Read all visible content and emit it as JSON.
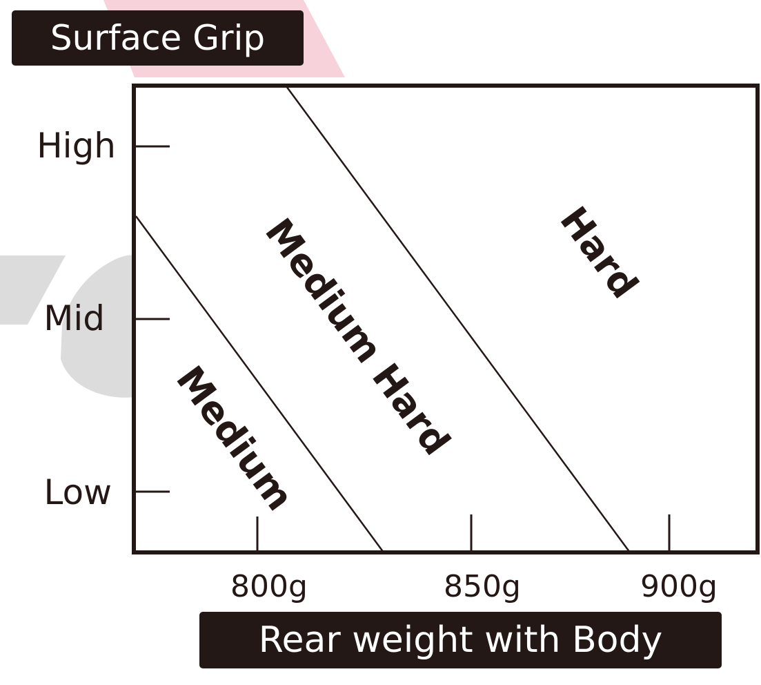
{
  "title": "Surface Grip",
  "x_axis_label": "Rear weight with Body",
  "y_ticks": [
    "High",
    "Mid",
    "Low"
  ],
  "x_ticks": [
    "800g",
    "850g",
    "900g"
  ],
  "zones": [
    "Medium",
    "Medium Hard",
    "Hard"
  ],
  "colors": {
    "ink": "#231815",
    "watermark_pink": "#f8d2db",
    "watermark_gray": "#dcdcdd"
  }
}
